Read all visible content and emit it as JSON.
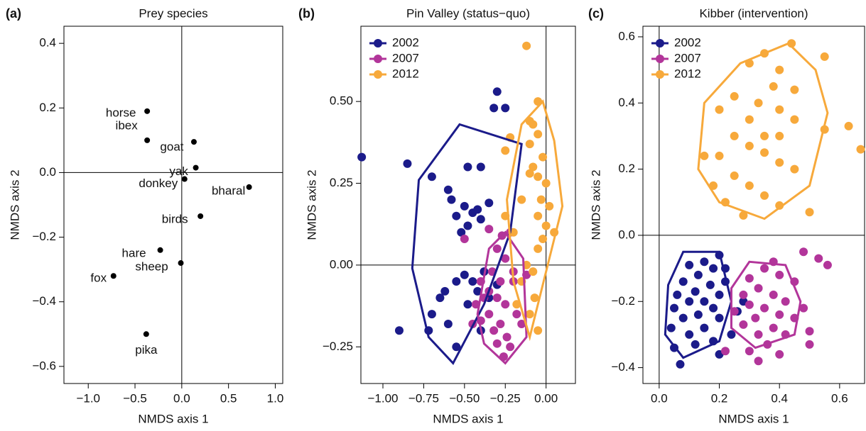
{
  "chart_data": [
    {
      "type": "labeled-scatter",
      "panel_label": "(a)",
      "title": "Prey species",
      "xlabel": "NMDS axis 1",
      "ylabel": "NMDS axis 2",
      "xlim": [
        -1.26,
        1.08
      ],
      "ylim": [
        -0.653,
        0.453
      ],
      "xticks": [
        {
          "value": -1,
          "label": "−1.0"
        },
        {
          "value": -0.5,
          "label": "−0.5"
        },
        {
          "value": 0,
          "label": "0.0"
        },
        0.5,
        {
          "value": 1,
          "label": "1.0"
        }
      ],
      "yticks": [
        {
          "value": -0.6,
          "label": "−0.6"
        },
        {
          "value": -0.4,
          "label": "−0.4"
        },
        {
          "value": -0.2,
          "label": "−0.2"
        },
        {
          "value": 0,
          "label": "0.0"
        },
        0.2,
        0.4
      ],
      "zero_lines": true,
      "color": "#000000",
      "categories": [
        "horse",
        "ibex",
        "goat",
        "yak",
        "donkey",
        "bharal",
        "birds",
        "hare",
        "sheep",
        "fox",
        "pika"
      ],
      "x": [
        -0.37,
        -0.37,
        0.13,
        0.15,
        0.03,
        0.72,
        0.2,
        -0.23,
        -0.01,
        -0.73,
        -0.38
      ],
      "values": [
        0.19,
        0.1,
        0.095,
        0.015,
        -0.02,
        -0.045,
        -0.135,
        -0.24,
        -0.28,
        -0.32,
        -0.5
      ]
    },
    {
      "type": "hull-scatter",
      "panel_label": "(b)",
      "title": "Pin Valley (status−quo)",
      "xlabel": "NMDS axis 1",
      "ylabel": "NMDS axis 2",
      "xlim": [
        -1.135,
        0.18
      ],
      "ylim": [
        -0.362,
        0.73
      ],
      "xticks": [
        {
          "value": -1,
          "label": "−1.00"
        },
        {
          "value": -0.75,
          "label": "−0.75"
        },
        {
          "value": -0.5,
          "label": "−0.50"
        },
        {
          "value": -0.25,
          "label": "−0.25"
        },
        {
          "value": 0,
          "label": "0.00"
        }
      ],
      "yticks": [
        {
          "value": -0.25,
          "label": "−0.25"
        },
        {
          "value": 0,
          "label": "0.00"
        },
        0.25,
        {
          "value": 0.5,
          "label": "0.50"
        }
      ],
      "zero_lines": true,
      "legend": "top-left",
      "series": [
        {
          "name": "2002",
          "color": "#1b1b8a",
          "x": [
            -1.13,
            -0.9,
            -0.85,
            -0.7,
            -0.6,
            -0.58,
            -0.55,
            -0.5,
            -0.45,
            -0.42,
            -0.4,
            -0.48,
            -0.52,
            -0.35,
            -0.3,
            -0.32,
            -0.25,
            -0.48,
            -0.4,
            -0.62,
            -0.65,
            -0.7,
            -0.72,
            -0.55,
            -0.5,
            -0.45,
            -0.42,
            -0.38,
            -0.35,
            -0.6,
            -0.55,
            -0.48,
            -0.3,
            -0.4
          ],
          "values": [
            0.33,
            -0.2,
            0.31,
            0.27,
            0.23,
            0.2,
            0.15,
            0.18,
            0.16,
            0.17,
            0.14,
            0.12,
            0.1,
            0.19,
            0.53,
            0.48,
            0.48,
            0.3,
            0.3,
            -0.08,
            -0.1,
            -0.15,
            -0.2,
            -0.05,
            -0.03,
            -0.05,
            -0.08,
            -0.02,
            -0.1,
            -0.18,
            -0.25,
            -0.12,
            -0.06,
            -0.2
          ],
          "hull": {
            "x": [
              -0.53,
              -0.78,
              -0.82,
              -0.72,
              -0.57,
              -0.38,
              -0.22,
              -0.15
            ],
            "y": [
              0.43,
              0.26,
              -0.01,
              -0.22,
              -0.3,
              -0.12,
              0.1,
              0.37
            ]
          }
        },
        {
          "name": "2007",
          "color": "#b2359a",
          "x": [
            -0.5,
            -0.35,
            -0.27,
            -0.22,
            -0.3,
            -0.25,
            -0.4,
            -0.35,
            -0.3,
            -0.25,
            -0.2,
            -0.18,
            -0.28,
            -0.32,
            -0.24,
            -0.35,
            -0.43,
            -0.4,
            -0.22,
            -0.26,
            -0.3,
            -0.15,
            -0.12,
            -0.2,
            -0.45,
            -0.28,
            -0.33,
            -0.38
          ],
          "values": [
            0.08,
            0.11,
            0.09,
            0.1,
            0.05,
            0.02,
            -0.05,
            -0.08,
            -0.1,
            -0.12,
            -0.05,
            -0.15,
            -0.18,
            -0.2,
            -0.22,
            -0.15,
            -0.12,
            -0.17,
            -0.25,
            -0.28,
            -0.24,
            -0.18,
            -0.03,
            -0.02,
            -0.18,
            -0.05,
            -0.02,
            -0.1
          ],
          "hull": {
            "x": [
              -0.35,
              -0.25,
              -0.14,
              -0.12,
              -0.25,
              -0.38,
              -0.42
            ],
            "y": [
              0.05,
              0.1,
              0.02,
              -0.22,
              -0.3,
              -0.24,
              -0.15
            ]
          }
        },
        {
          "name": "2012",
          "color": "#f7a93b",
          "x": [
            -0.12,
            -0.05,
            -0.1,
            -0.08,
            -0.22,
            -0.1,
            -0.05,
            -0.02,
            -0.08,
            -0.1,
            -0.05,
            0.0,
            -0.03,
            0.02,
            -0.05,
            0.0,
            0.05,
            -0.02,
            -0.05,
            -0.12,
            -0.08,
            -0.15,
            -0.2,
            -0.15,
            -0.25,
            -0.07,
            -0.1,
            -0.18,
            -0.05,
            -0.25
          ],
          "values": [
            0.67,
            0.5,
            0.44,
            0.43,
            0.39,
            0.37,
            0.4,
            0.33,
            0.3,
            0.28,
            0.27,
            0.25,
            0.2,
            0.18,
            0.15,
            0.12,
            0.1,
            0.08,
            0.05,
            0.0,
            -0.02,
            -0.05,
            0.1,
            0.2,
            0.15,
            -0.1,
            -0.15,
            -0.12,
            -0.2,
            0.35
          ],
          "hull": {
            "x": [
              -0.02,
              -0.15,
              -0.24,
              -0.2,
              -0.1,
              0.02,
              0.1,
              0.05
            ],
            "y": [
              0.5,
              0.43,
              0.2,
              -0.05,
              -0.22,
              0.02,
              0.18,
              0.38
            ]
          }
        }
      ]
    },
    {
      "type": "hull-scatter",
      "panel_label": "(c)",
      "title": "Kibber (intervention)",
      "xlabel": "NMDS axis 1",
      "ylabel": "NMDS axis 2",
      "xlim": [
        -0.054,
        0.683
      ],
      "ylim": [
        -0.448,
        0.632
      ],
      "xticks": [
        {
          "value": 0,
          "label": "0.0"
        },
        0.2,
        0.4,
        0.6
      ],
      "yticks": [
        {
          "value": -0.4,
          "label": "−0.4"
        },
        {
          "value": -0.2,
          "label": "−0.2"
        },
        {
          "value": 0,
          "label": "0.0"
        },
        0.2,
        0.4,
        0.6
      ],
      "zero_lines": true,
      "legend": "top-left",
      "series": [
        {
          "name": "2002",
          "color": "#1b1b8a",
          "x": [
            0.2,
            0.15,
            0.1,
            0.18,
            0.22,
            0.13,
            0.08,
            0.17,
            0.12,
            0.06,
            0.2,
            0.1,
            0.15,
            0.05,
            0.18,
            0.13,
            0.08,
            0.2,
            0.04,
            0.15,
            0.1,
            0.18,
            0.05,
            0.12,
            0.07,
            0.2,
            0.24,
            0.26,
            0.22,
            0.28
          ],
          "values": [
            -0.06,
            -0.08,
            -0.09,
            -0.1,
            -0.1,
            -0.12,
            -0.14,
            -0.15,
            -0.17,
            -0.18,
            -0.18,
            -0.2,
            -0.2,
            -0.22,
            -0.22,
            -0.24,
            -0.25,
            -0.25,
            -0.28,
            -0.28,
            -0.3,
            -0.32,
            -0.34,
            -0.33,
            -0.39,
            -0.36,
            -0.3,
            -0.23,
            -0.14,
            -0.2
          ],
          "hull": {
            "x": [
              0.08,
              0.03,
              0.02,
              0.08,
              0.2,
              0.24,
              0.2
            ],
            "y": [
              -0.05,
              -0.15,
              -0.3,
              -0.37,
              -0.32,
              -0.2,
              -0.05
            ]
          }
        },
        {
          "name": "2007",
          "color": "#b2359a",
          "x": [
            0.48,
            0.53,
            0.56,
            0.38,
            0.35,
            0.4,
            0.3,
            0.45,
            0.33,
            0.28,
            0.38,
            0.42,
            0.3,
            0.35,
            0.25,
            0.4,
            0.45,
            0.32,
            0.28,
            0.38,
            0.42,
            0.33,
            0.5,
            0.36,
            0.3,
            0.4,
            0.33,
            0.5,
            0.48,
            0.22
          ],
          "values": [
            -0.05,
            -0.07,
            -0.09,
            -0.08,
            -0.1,
            -0.12,
            -0.13,
            -0.14,
            -0.16,
            -0.18,
            -0.18,
            -0.2,
            -0.21,
            -0.22,
            -0.23,
            -0.24,
            -0.25,
            -0.25,
            -0.27,
            -0.28,
            -0.3,
            -0.3,
            -0.29,
            -0.33,
            -0.35,
            -0.36,
            -0.38,
            -0.33,
            -0.22,
            -0.35
          ],
          "hull": {
            "x": [
              0.3,
              0.24,
              0.24,
              0.32,
              0.45,
              0.47,
              0.42
            ],
            "y": [
              -0.08,
              -0.16,
              -0.28,
              -0.34,
              -0.3,
              -0.2,
              -0.09
            ]
          }
        },
        {
          "name": "2012",
          "color": "#f7a93b",
          "x": [
            0.44,
            0.35,
            0.3,
            0.4,
            0.55,
            0.38,
            0.45,
            0.25,
            0.33,
            0.2,
            0.4,
            0.45,
            0.3,
            0.35,
            0.25,
            0.55,
            0.4,
            0.63,
            0.67,
            0.3,
            0.2,
            0.35,
            0.4,
            0.15,
            0.45,
            0.25,
            0.3,
            0.35,
            0.22,
            0.28,
            0.5,
            0.4,
            0.18
          ],
          "values": [
            0.58,
            0.55,
            0.52,
            0.5,
            0.54,
            0.45,
            0.44,
            0.42,
            0.4,
            0.38,
            0.38,
            0.35,
            0.35,
            0.3,
            0.3,
            0.32,
            0.3,
            0.33,
            0.26,
            0.27,
            0.24,
            0.25,
            0.22,
            0.24,
            0.2,
            0.18,
            0.15,
            0.12,
            0.1,
            0.06,
            0.07,
            0.09,
            0.15
          ],
          "hull": {
            "x": [
              0.43,
              0.27,
              0.15,
              0.13,
              0.2,
              0.35,
              0.5,
              0.56,
              0.52
            ],
            "y": [
              0.58,
              0.52,
              0.4,
              0.2,
              0.1,
              0.05,
              0.15,
              0.37,
              0.5
            ]
          }
        }
      ]
    }
  ]
}
